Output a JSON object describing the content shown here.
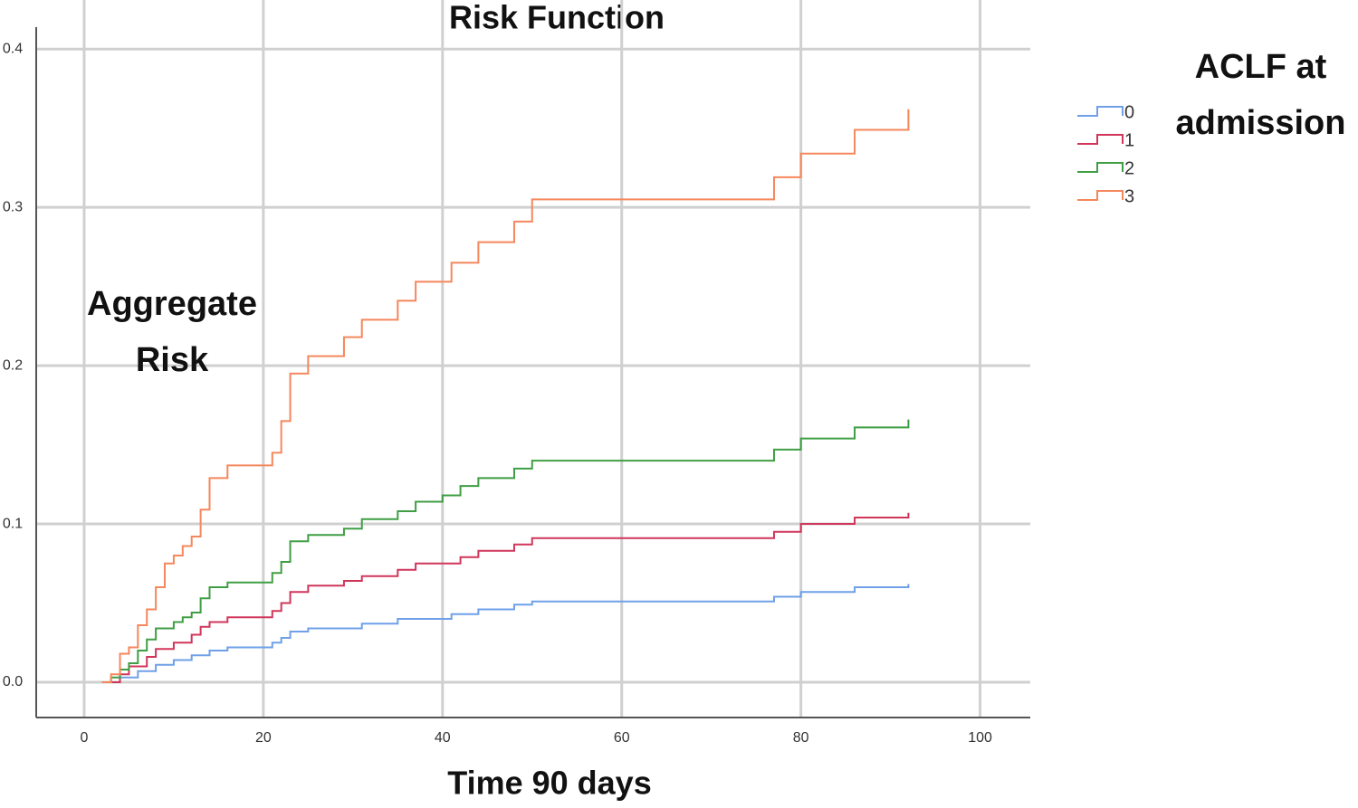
{
  "chart_data": {
    "type": "line",
    "step": "post",
    "title": "Risk Function",
    "x_label": "Time 90 days",
    "y_label": "Aggregate Risk",
    "legend_title": "ACLF at admission",
    "legend": "right",
    "xlim": [
      -5.35,
      105.6
    ],
    "xticks": [
      0,
      20,
      40,
      60,
      80,
      100
    ],
    "ylim": [
      -0.0223,
      0.431
    ],
    "yticks": [
      {
        "value": 0,
        "label": "0.0"
      },
      0.1,
      0.2,
      0.3,
      0.4
    ],
    "grid": true,
    "series": [
      {
        "name": "0",
        "color": "#6fa0e8",
        "x": [
          2,
          4,
          6,
          8,
          10,
          12,
          14,
          16,
          21,
          22,
          23,
          25,
          31,
          35,
          41,
          44,
          48,
          50,
          77,
          80,
          86,
          92
        ],
        "values": [
          0,
          0.003,
          0.007,
          0.011,
          0.014,
          0.017,
          0.02,
          0.022,
          0.025,
          0.028,
          0.032,
          0.034,
          0.037,
          0.04,
          0.043,
          0.046,
          0.049,
          0.051,
          0.054,
          0.057,
          0.06,
          0.062
        ]
      },
      {
        "name": "1",
        "color": "#d0365a",
        "x": [
          2,
          4,
          5,
          7,
          8,
          10,
          12,
          13,
          14,
          16,
          21,
          22,
          23,
          25,
          29,
          31,
          35,
          37,
          42,
          44,
          48,
          50,
          77,
          80,
          86,
          92
        ],
        "values": [
          0,
          0.005,
          0.01,
          0.016,
          0.021,
          0.025,
          0.03,
          0.035,
          0.038,
          0.041,
          0.045,
          0.05,
          0.057,
          0.061,
          0.064,
          0.067,
          0.071,
          0.075,
          0.079,
          0.083,
          0.087,
          0.091,
          0.095,
          0.1,
          0.104,
          0.107
        ]
      },
      {
        "name": "2",
        "color": "#3f9e44",
        "x": [
          2,
          3,
          4,
          5,
          6,
          7,
          8,
          10,
          11,
          12,
          13,
          14,
          16,
          21,
          22,
          23,
          25,
          29,
          31,
          35,
          37,
          40,
          42,
          44,
          48,
          50,
          77,
          80,
          86,
          92
        ],
        "values": [
          0,
          0.003,
          0.008,
          0.012,
          0.02,
          0.027,
          0.034,
          0.038,
          0.041,
          0.044,
          0.053,
          0.06,
          0.063,
          0.069,
          0.076,
          0.089,
          0.093,
          0.097,
          0.103,
          0.108,
          0.114,
          0.118,
          0.124,
          0.129,
          0.135,
          0.14,
          0.147,
          0.154,
          0.161,
          0.166
        ]
      },
      {
        "name": "3",
        "color": "#f5875c",
        "x": [
          2,
          3,
          4,
          5,
          6,
          7,
          8,
          9,
          10,
          11,
          12,
          13,
          14,
          16,
          21,
          22,
          23,
          25,
          29,
          31,
          35,
          37,
          41,
          44,
          48,
          50,
          77,
          80,
          86,
          92
        ],
        "values": [
          0,
          0.005,
          0.018,
          0.022,
          0.036,
          0.046,
          0.06,
          0.075,
          0.08,
          0.086,
          0.092,
          0.109,
          0.129,
          0.137,
          0.145,
          0.165,
          0.195,
          0.206,
          0.218,
          0.229,
          0.241,
          0.253,
          0.265,
          0.278,
          0.291,
          0.305,
          0.319,
          0.334,
          0.349,
          0.362
        ]
      }
    ]
  }
}
